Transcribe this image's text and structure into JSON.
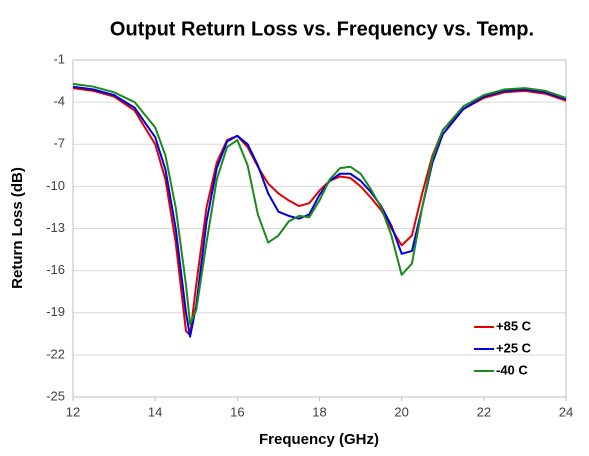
{
  "chart_data": {
    "type": "line",
    "title": "Output Return Loss vs. Frequency vs. Temp.",
    "x_label": "Frequency (GHz)",
    "y_label": "Return Loss (dB)",
    "x": [
      12,
      12.5,
      13,
      13.5,
      14,
      14.25,
      14.5,
      14.75,
      14.85,
      15,
      15.25,
      15.5,
      15.75,
      16,
      16.25,
      16.5,
      16.75,
      17,
      17.25,
      17.5,
      17.75,
      18,
      18.25,
      18.5,
      18.75,
      19,
      19.25,
      19.5,
      19.75,
      20,
      20.25,
      20.5,
      20.75,
      21,
      21.5,
      22,
      22.5,
      23,
      23.5,
      24
    ],
    "series": [
      {
        "name": "+85 C",
        "color": "#e00000",
        "values": [
          -3.0,
          -3.2,
          -3.6,
          -4.6,
          -7,
          -9.5,
          -14,
          -20.3,
          -20.6,
          -17,
          -11.5,
          -8.3,
          -6.7,
          -6.4,
          -7.2,
          -8.6,
          -9.8,
          -10.5,
          -11.0,
          -11.4,
          -11.2,
          -10.3,
          -9.6,
          -9.3,
          -9.4,
          -10.0,
          -10.8,
          -11.7,
          -13,
          -14.2,
          -13.5,
          -10.5,
          -7.8,
          -6.0,
          -4.5,
          -3.7,
          -3.3,
          -3.2,
          -3.4,
          -3.9
        ]
      },
      {
        "name": "+25 C",
        "color": "#0000dd",
        "values": [
          -2.9,
          -3.1,
          -3.5,
          -4.4,
          -6.5,
          -8.8,
          -13,
          -19,
          -20.7,
          -18.5,
          -12.5,
          -8.7,
          -6.8,
          -6.4,
          -7.0,
          -8.5,
          -10.5,
          -11.8,
          -12.1,
          -12.3,
          -12.0,
          -10.6,
          -9.6,
          -9.1,
          -9.1,
          -9.6,
          -10.4,
          -11.4,
          -12.8,
          -14.8,
          -14.6,
          -11.5,
          -8.3,
          -6.3,
          -4.5,
          -3.6,
          -3.2,
          -3.1,
          -3.3,
          -3.8
        ]
      },
      {
        "name": "-40 C",
        "color": "#1a8a1a",
        "values": [
          -2.7,
          -2.9,
          -3.3,
          -4.0,
          -5.8,
          -7.8,
          -11.5,
          -17,
          -19.8,
          -18.8,
          -14,
          -9.5,
          -7.2,
          -6.7,
          -8.5,
          -12.0,
          -14.0,
          -13.5,
          -12.5,
          -12.1,
          -12.2,
          -11.0,
          -9.5,
          -8.7,
          -8.6,
          -9.1,
          -10.2,
          -11.5,
          -13.5,
          -16.3,
          -15.5,
          -11.5,
          -8.0,
          -6.0,
          -4.3,
          -3.5,
          -3.1,
          -3.0,
          -3.2,
          -3.7
        ]
      }
    ],
    "xlim": [
      12,
      24
    ],
    "xticks": [
      12,
      14,
      16,
      18,
      20,
      22,
      24
    ],
    "ylim": [
      -25,
      -1
    ],
    "yticks": [
      -25,
      -22,
      -19,
      -16,
      -13,
      -10,
      -7,
      -4,
      -1
    ],
    "grid": true,
    "legend": "lower right"
  }
}
